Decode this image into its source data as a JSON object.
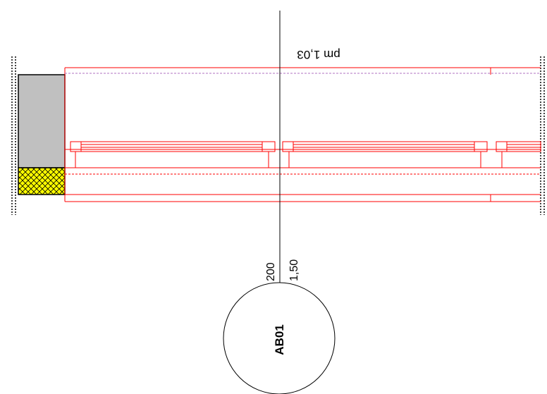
{
  "labels": {
    "level_text": "pm 1,03",
    "dim_left": "200",
    "dim_right": "1,50",
    "circle_tag": "AB01"
  },
  "colors": {
    "wall_gray": "#c0c0c0",
    "hatch_yellow": "#ffff00",
    "frame_red": "#ff0000",
    "dashed_violet": "#b070c0",
    "ink": "#000000"
  }
}
